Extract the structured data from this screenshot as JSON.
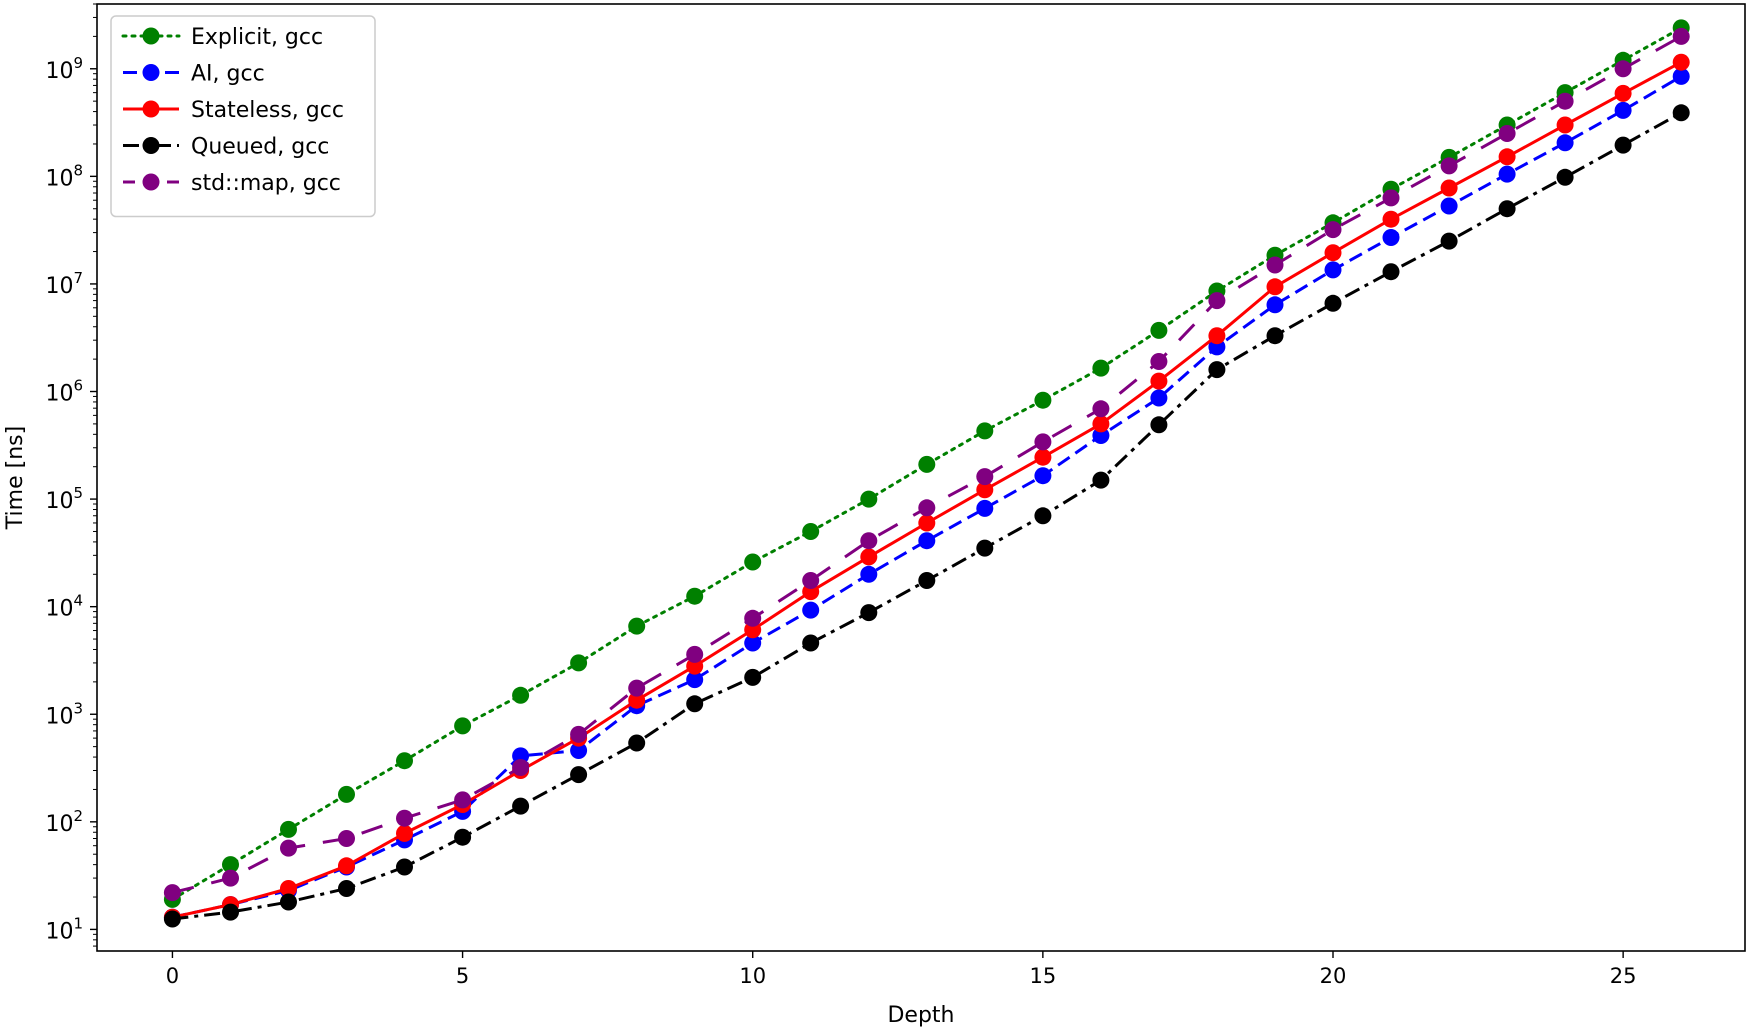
{
  "chart_data": {
    "type": "line",
    "xlabel": "Depth",
    "ylabel": "Time [ns]",
    "xlim": [
      -1.3,
      27.1
    ],
    "ylim": [
      6.3,
      4000000000
    ],
    "yscale": "log",
    "xticks": [
      0,
      5,
      10,
      15,
      20,
      25
    ],
    "yticks": [
      {
        "value": 10,
        "base": "10",
        "exp": "1"
      },
      {
        "value": 100,
        "base": "10",
        "exp": "2"
      },
      {
        "value": 1000,
        "base": "10",
        "exp": "3"
      },
      {
        "value": 10000,
        "base": "10",
        "exp": "4"
      },
      {
        "value": 100000,
        "base": "10",
        "exp": "5"
      },
      {
        "value": 1000000,
        "base": "10",
        "exp": "6"
      },
      {
        "value": 10000000,
        "base": "10",
        "exp": "7"
      },
      {
        "value": 100000000,
        "base": "10",
        "exp": "8"
      },
      {
        "value": 1000000000,
        "base": "10",
        "exp": "9"
      }
    ],
    "grid": false,
    "legend_position": "upper-left",
    "x": [
      0,
      1,
      2,
      3,
      4,
      5,
      6,
      7,
      8,
      9,
      10,
      11,
      12,
      13,
      14,
      15,
      16,
      17,
      18,
      19,
      20,
      21,
      22,
      23,
      24,
      25,
      26
    ],
    "series": [
      {
        "name": "Explicit, gcc",
        "color": "#008000",
        "linestyle": "dotted",
        "values": [
          19,
          40,
          85,
          180,
          370,
          780,
          1500,
          3000,
          6600,
          12500,
          26000,
          50000,
          100000,
          210000,
          430000,
          830000,
          1650000,
          3700000,
          8600000,
          18500000,
          37000000,
          76000000,
          150000000,
          300000000,
          600000000,
          1200000000,
          2400000000
        ]
      },
      {
        "name": "AI, gcc",
        "color": "#0000ff",
        "linestyle": "dashed",
        "values": [
          13,
          17,
          23,
          38,
          68,
          125,
          410,
          460,
          1200,
          2100,
          4600,
          9300,
          20000,
          41000,
          82000,
          165000,
          390000,
          870000,
          2600000,
          6400000,
          13500000,
          27000000,
          53000000,
          105000000,
          205000000,
          410000000,
          850000000
        ]
      },
      {
        "name": "Stateless, gcc",
        "color": "#ff0000",
        "linestyle": "solid",
        "values": [
          13,
          17,
          24,
          39,
          78,
          145,
          300,
          600,
          1350,
          2800,
          6100,
          13800,
          29000,
          60000,
          122000,
          245000,
          500000,
          1250000,
          3300000,
          9400000,
          19500000,
          40000000,
          78000000,
          152000000,
          300000000,
          590000000,
          1150000000
        ]
      },
      {
        "name": "Queued, gcc",
        "color": "#000000",
        "linestyle": "dashdot",
        "values": [
          12.5,
          14.5,
          18,
          24,
          38,
          72,
          140,
          275,
          540,
          1250,
          2200,
          4600,
          8800,
          17500,
          35000,
          70000,
          150000,
          490000,
          1600000,
          3300000,
          6600000,
          13000000,
          25000000,
          50000000,
          98000000,
          195000000,
          390000000
        ]
      },
      {
        "name": "std::map, gcc",
        "color": "#800080",
        "linestyle": "loosedash",
        "values": [
          22,
          30,
          57,
          70,
          108,
          160,
          320,
          650,
          1750,
          3600,
          7800,
          17500,
          41000,
          83000,
          162000,
          340000,
          690000,
          1900000,
          7000000,
          15000000,
          32000000,
          63000000,
          125000000,
          250000000,
          500000000,
          1000000000,
          2000000000
        ]
      }
    ]
  }
}
